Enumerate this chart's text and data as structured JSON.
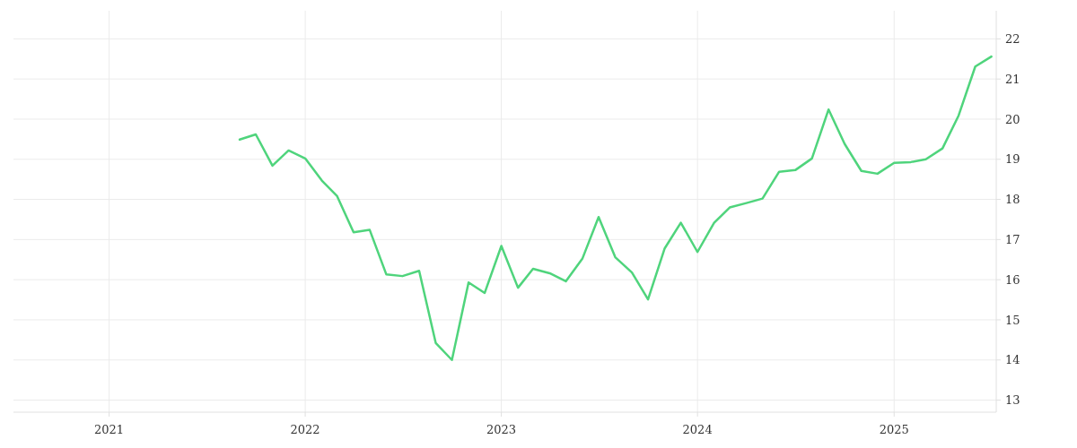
{
  "chart_data": {
    "type": "line",
    "x": [
      "2021-09",
      "2021-10",
      "2021-11",
      "2021-12",
      "2022-01",
      "2022-02",
      "2022-03",
      "2022-04",
      "2022-05",
      "2022-06",
      "2022-07",
      "2022-08",
      "2022-09",
      "2022-10",
      "2022-11",
      "2022-12",
      "2023-01",
      "2023-02",
      "2023-03",
      "2023-04",
      "2023-05",
      "2023-06",
      "2023-07",
      "2023-08",
      "2023-09",
      "2023-10",
      "2023-11",
      "2023-12",
      "2024-01",
      "2024-02",
      "2024-03",
      "2024-04",
      "2024-05",
      "2024-06",
      "2024-07",
      "2024-08",
      "2024-09",
      "2024-10",
      "2024-11",
      "2024-12",
      "2025-01",
      "2025-02",
      "2025-03",
      "2025-04",
      "2025-05",
      "2025-06",
      "2025-07"
    ],
    "series": [
      {
        "color": "#4fd47c",
        "values": [
          19.49,
          19.62,
          18.84,
          19.22,
          19.02,
          18.47,
          18.09,
          17.18,
          17.24,
          16.13,
          16.09,
          16.22,
          14.42,
          14.0,
          15.93,
          15.67,
          16.84,
          15.8,
          16.27,
          16.16,
          15.96,
          16.53,
          17.56,
          16.56,
          16.18,
          15.51,
          16.78,
          17.42,
          16.69,
          17.42,
          17.8,
          17.91,
          18.02,
          18.69,
          18.73,
          19.02,
          20.24,
          19.38,
          18.71,
          18.64,
          18.91,
          18.93,
          19.0,
          19.27,
          20.09,
          21.31,
          21.56
        ]
      }
    ],
    "xlim": [
      "2020-07-07",
      "2025-07-10"
    ],
    "xticks": [
      "2021",
      "2022",
      "2023",
      "2024",
      "2025"
    ],
    "ylim": [
      12.7,
      22.7
    ],
    "yticks": [
      13,
      14,
      15,
      16,
      17,
      18,
      19,
      20,
      21,
      22
    ],
    "grid": true,
    "marker": "none",
    "line_style": "solid"
  }
}
